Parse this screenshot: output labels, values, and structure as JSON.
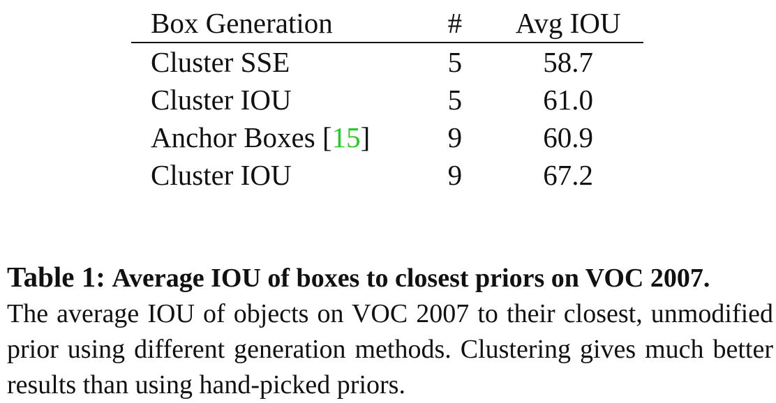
{
  "table": {
    "headers": {
      "method": "Box Generation",
      "count": "#",
      "iou": "Avg IOU"
    },
    "rows": [
      {
        "method": "Cluster SSE",
        "citation": "",
        "count": "5",
        "iou": "58.7"
      },
      {
        "method": "Cluster IOU",
        "citation": "",
        "count": "5",
        "iou": "61.0"
      },
      {
        "method": "Anchor Boxes",
        "citation": "15",
        "count": "9",
        "iou": "60.9"
      },
      {
        "method": "Cluster IOU",
        "citation": "",
        "count": "9",
        "iou": "67.2"
      }
    ],
    "citation_color": "#22cc22"
  },
  "caption": {
    "label": "Table 1:",
    "title": "Average IOU of boxes to closest priors on VOC 2007.",
    "body": "The average IOU of objects on VOC 2007 to their closest, unmodified prior using different generation methods. Clustering gives much better results than using hand-picked priors."
  }
}
